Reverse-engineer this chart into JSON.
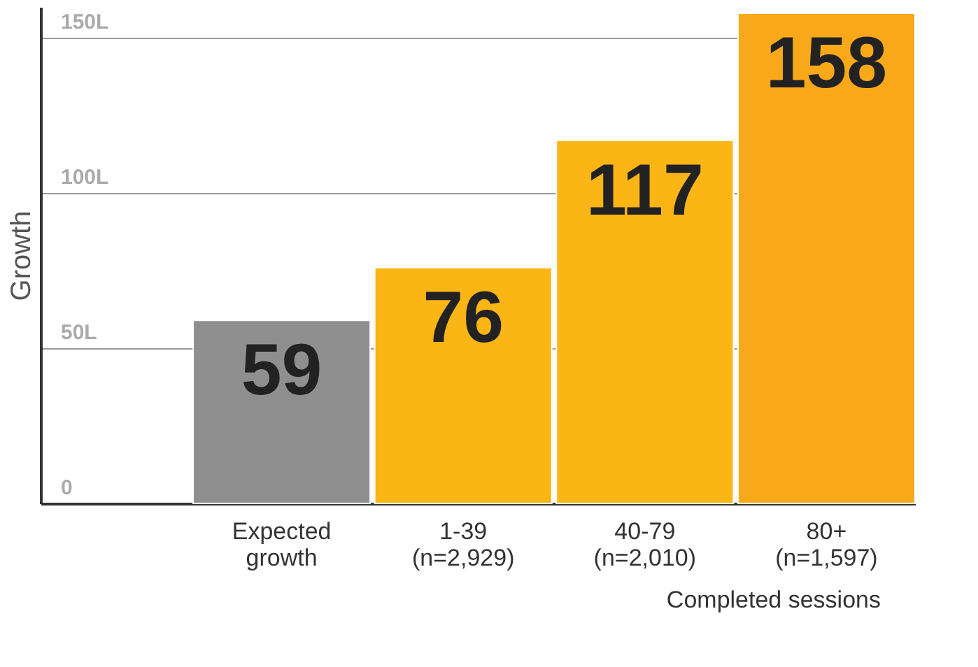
{
  "chart_data": {
    "type": "bar",
    "ylabel": "Growth",
    "xlabel": "Completed sessions",
    "categories": [
      "Expected\ngrowth",
      "1-39\n(n=2,929)",
      "40-79\n(n=2,010)",
      "80+\n(n=1,597)"
    ],
    "values": [
      59,
      76,
      117,
      158
    ],
    "colors": [
      "#8f8f90",
      "#fbb515",
      "#fbb515",
      "#f9a81a"
    ],
    "data_labels": true,
    "ylim": [
      0,
      160
    ],
    "yticks": [
      0,
      {
        "value": 50,
        "label": "50L"
      },
      {
        "value": 100,
        "label": "100L"
      },
      {
        "value": 150,
        "label": "150L"
      }
    ],
    "grid": "y"
  }
}
